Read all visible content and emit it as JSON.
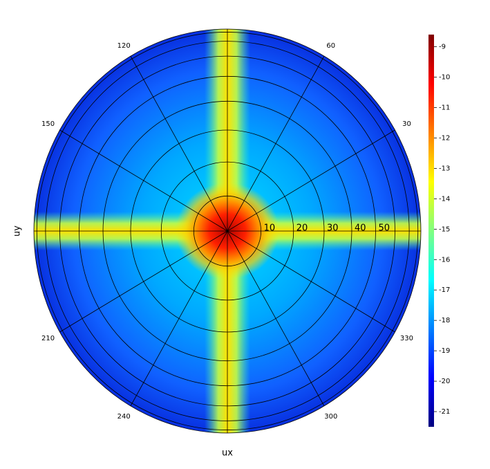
{
  "chart_data": {
    "type": "polar-heatmap",
    "xlabel": "ux",
    "ylabel": "uy",
    "rlim": [
      0,
      90
    ],
    "rticks": [
      10,
      20,
      30,
      40,
      50
    ],
    "rgrid": [
      60,
      70,
      80
    ],
    "thetaticks": [
      30,
      60,
      120,
      150,
      210,
      240,
      300,
      330
    ],
    "zlim": [
      -21.5,
      -8.6
    ],
    "zticks": [
      -9,
      -10,
      -11,
      -12,
      -13,
      -14,
      -15,
      -16,
      -17,
      -18,
      -19,
      -20,
      -21
    ],
    "colormap": "jet"
  }
}
